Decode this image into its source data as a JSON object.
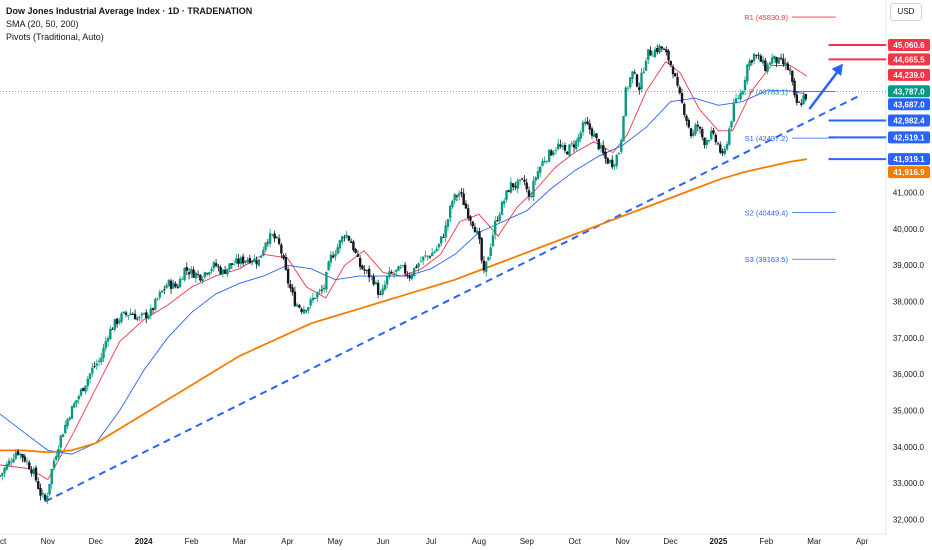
{
  "header": {
    "title": "Dow Jones Industrial Average Index · 1D · TRADENATION",
    "indicator_sma": "SMA (20, 50, 200)",
    "indicator_pivots": "Pivots (Traditional, Auto)",
    "currency": "USD"
  },
  "colors": {
    "candle_up": "#089981",
    "candle_down": "#131722",
    "sma20": "#f23645",
    "sma50": "#2962ff",
    "sma200": "#f57c00",
    "trendline": "#2962ff",
    "support_line": "#2962ff",
    "resistance_line": "#f23645",
    "pivot_p": "#089981"
  },
  "chart_data": {
    "type": "candlestick",
    "title": "Dow Jones Industrial Average Index",
    "timeframe": "1D",
    "x_ticks": [
      "Oct",
      "Nov",
      "Dec",
      "2024",
      "Feb",
      "Mar",
      "Apr",
      "May",
      "Jun",
      "Jul",
      "Aug",
      "Sep",
      "Oct",
      "Nov",
      "Dec",
      "2025",
      "Feb",
      "Mar",
      "Apr"
    ],
    "x_tick_index": [
      0,
      1,
      2,
      3,
      4,
      5,
      6,
      7,
      8,
      9,
      10,
      11,
      12,
      13,
      14,
      15,
      16,
      17,
      18
    ],
    "y_ticks": [
      "32,000.0",
      "33,000.0",
      "34,000.0",
      "35,000.0",
      "36,000.0",
      "37,000.0",
      "38,000.0",
      "39,000.0",
      "40,000.0",
      "41,000.0"
    ],
    "y_tick_values": [
      32000,
      33000,
      34000,
      35000,
      36000,
      37000,
      38000,
      39000,
      40000,
      41000
    ],
    "ylim": [
      31600,
      46300
    ],
    "xlim_months": [
      0,
      18.5
    ],
    "price_path": [
      [
        0.0,
        33200
      ],
      [
        0.2,
        33600
      ],
      [
        0.35,
        33900
      ],
      [
        0.5,
        33700
      ],
      [
        0.7,
        33300
      ],
      [
        0.85,
        32700
      ],
      [
        0.95,
        32500
      ],
      [
        1.0,
        32800
      ],
      [
        1.1,
        33500
      ],
      [
        1.25,
        34200
      ],
      [
        1.45,
        34900
      ],
      [
        1.6,
        35300
      ],
      [
        1.8,
        35800
      ],
      [
        1.95,
        36200
      ],
      [
        2.1,
        36400
      ],
      [
        2.25,
        37100
      ],
      [
        2.4,
        37400
      ],
      [
        2.55,
        37600
      ],
      [
        2.75,
        37700
      ],
      [
        2.9,
        37500
      ],
      [
        3.0,
        37600
      ],
      [
        3.15,
        37700
      ],
      [
        3.3,
        38100
      ],
      [
        3.5,
        38500
      ],
      [
        3.7,
        38400
      ],
      [
        3.85,
        38900
      ],
      [
        4.0,
        38800
      ],
      [
        4.2,
        38700
      ],
      [
        4.35,
        38900
      ],
      [
        4.5,
        39000
      ],
      [
        4.65,
        38800
      ],
      [
        4.8,
        39000
      ],
      [
        5.0,
        39100
      ],
      [
        5.2,
        39200
      ],
      [
        5.4,
        39100
      ],
      [
        5.55,
        39700
      ],
      [
        5.7,
        39800
      ],
      [
        5.85,
        39500
      ],
      [
        6.0,
        38600
      ],
      [
        6.15,
        38000
      ],
      [
        6.3,
        37800
      ],
      [
        6.45,
        37900
      ],
      [
        6.6,
        38200
      ],
      [
        6.75,
        38300
      ],
      [
        6.9,
        39200
      ],
      [
        7.05,
        39500
      ],
      [
        7.2,
        39900
      ],
      [
        7.35,
        39600
      ],
      [
        7.5,
        39000
      ],
      [
        7.65,
        38800
      ],
      [
        7.8,
        38600
      ],
      [
        7.95,
        38100
      ],
      [
        8.1,
        38700
      ],
      [
        8.25,
        38800
      ],
      [
        8.4,
        38900
      ],
      [
        8.55,
        38700
      ],
      [
        8.7,
        39000
      ],
      [
        8.85,
        39200
      ],
      [
        9.0,
        39300
      ],
      [
        9.15,
        39500
      ],
      [
        9.3,
        40000
      ],
      [
        9.45,
        40800
      ],
      [
        9.6,
        41000
      ],
      [
        9.75,
        40500
      ],
      [
        9.9,
        40100
      ],
      [
        10.0,
        39700
      ],
      [
        10.1,
        38700
      ],
      [
        10.2,
        39300
      ],
      [
        10.35,
        40200
      ],
      [
        10.5,
        40700
      ],
      [
        10.65,
        41200
      ],
      [
        10.8,
        41200
      ],
      [
        10.95,
        41300
      ],
      [
        11.05,
        40800
      ],
      [
        11.2,
        41500
      ],
      [
        11.35,
        41900
      ],
      [
        11.5,
        42100
      ],
      [
        11.65,
        42300
      ],
      [
        11.8,
        42100
      ],
      [
        11.95,
        42300
      ],
      [
        12.05,
        42400
      ],
      [
        12.2,
        42900
      ],
      [
        12.35,
        42700
      ],
      [
        12.5,
        42300
      ],
      [
        12.65,
        41900
      ],
      [
        12.8,
        41800
      ],
      [
        12.95,
        42200
      ],
      [
        13.05,
        43700
      ],
      [
        13.2,
        44300
      ],
      [
        13.35,
        43900
      ],
      [
        13.5,
        44800
      ],
      [
        13.65,
        44900
      ],
      [
        13.8,
        45000
      ],
      [
        13.95,
        44700
      ],
      [
        14.05,
        44400
      ],
      [
        14.15,
        43800
      ],
      [
        14.3,
        43200
      ],
      [
        14.45,
        42500
      ],
      [
        14.55,
        42900
      ],
      [
        14.7,
        42400
      ],
      [
        14.85,
        42600
      ],
      [
        15.0,
        42300
      ],
      [
        15.1,
        41900
      ],
      [
        15.25,
        42900
      ],
      [
        15.35,
        43500
      ],
      [
        15.5,
        43800
      ],
      [
        15.6,
        44500
      ],
      [
        15.75,
        44800
      ],
      [
        15.9,
        44600
      ],
      [
        16.0,
        44400
      ],
      [
        16.1,
        44700
      ],
      [
        16.25,
        44600
      ],
      [
        16.4,
        44500
      ],
      [
        16.5,
        44300
      ],
      [
        16.6,
        43500
      ],
      [
        16.7,
        43400
      ],
      [
        16.8,
        43700
      ],
      [
        16.85,
        43600
      ]
    ],
    "series": [
      {
        "name": "SMA 20",
        "values_note": "",
        "points": [
          [
            0.0,
            33500
          ],
          [
            0.6,
            33400
          ],
          [
            1.0,
            33100
          ],
          [
            1.5,
            34300
          ],
          [
            2.0,
            35600
          ],
          [
            2.5,
            36900
          ],
          [
            3.0,
            37500
          ],
          [
            3.5,
            37900
          ],
          [
            4.0,
            38400
          ],
          [
            4.5,
            38700
          ],
          [
            5.0,
            38900
          ],
          [
            5.5,
            39300
          ],
          [
            6.0,
            39200
          ],
          [
            6.4,
            38400
          ],
          [
            6.8,
            38100
          ],
          [
            7.2,
            39000
          ],
          [
            7.6,
            39400
          ],
          [
            8.0,
            38800
          ],
          [
            8.4,
            38700
          ],
          [
            8.8,
            38900
          ],
          [
            9.2,
            39300
          ],
          [
            9.6,
            40200
          ],
          [
            10.0,
            40400
          ],
          [
            10.4,
            39800
          ],
          [
            10.8,
            40600
          ],
          [
            11.2,
            41100
          ],
          [
            11.6,
            41700
          ],
          [
            12.0,
            42100
          ],
          [
            12.4,
            42400
          ],
          [
            12.8,
            42100
          ],
          [
            13.1,
            42600
          ],
          [
            13.5,
            43800
          ],
          [
            13.9,
            44600
          ],
          [
            14.2,
            44300
          ],
          [
            14.6,
            43300
          ],
          [
            15.0,
            42700
          ],
          [
            15.3,
            42700
          ],
          [
            15.7,
            43800
          ],
          [
            16.1,
            44500
          ],
          [
            16.5,
            44500
          ],
          [
            16.85,
            44200
          ]
        ]
      },
      {
        "name": "SMA 50",
        "points": [
          [
            0.0,
            34900
          ],
          [
            0.5,
            34400
          ],
          [
            1.0,
            33900
          ],
          [
            1.5,
            33800
          ],
          [
            2.0,
            34100
          ],
          [
            2.5,
            35000
          ],
          [
            3.0,
            36100
          ],
          [
            3.5,
            37000
          ],
          [
            4.0,
            37700
          ],
          [
            4.5,
            38200
          ],
          [
            5.0,
            38500
          ],
          [
            5.5,
            38700
          ],
          [
            6.0,
            39000
          ],
          [
            6.5,
            38900
          ],
          [
            7.0,
            38600
          ],
          [
            7.5,
            38700
          ],
          [
            8.0,
            38700
          ],
          [
            8.5,
            38700
          ],
          [
            9.0,
            38900
          ],
          [
            9.5,
            39300
          ],
          [
            10.0,
            39900
          ],
          [
            10.5,
            40200
          ],
          [
            11.0,
            40500
          ],
          [
            11.5,
            41100
          ],
          [
            12.0,
            41600
          ],
          [
            12.5,
            42000
          ],
          [
            13.0,
            42300
          ],
          [
            13.5,
            42800
          ],
          [
            14.0,
            43500
          ],
          [
            14.5,
            43600
          ],
          [
            15.0,
            43400
          ],
          [
            15.5,
            43500
          ],
          [
            16.0,
            43800
          ],
          [
            16.5,
            43800
          ],
          [
            16.85,
            43700
          ]
        ]
      },
      {
        "name": "SMA 200",
        "points": [
          [
            0.0,
            33900
          ],
          [
            0.5,
            33900
          ],
          [
            1.0,
            33850
          ],
          [
            1.5,
            33900
          ],
          [
            2.0,
            34100
          ],
          [
            2.5,
            34500
          ],
          [
            3.0,
            34900
          ],
          [
            3.5,
            35300
          ],
          [
            4.0,
            35700
          ],
          [
            4.5,
            36100
          ],
          [
            5.0,
            36500
          ],
          [
            5.5,
            36800
          ],
          [
            6.0,
            37100
          ],
          [
            6.5,
            37400
          ],
          [
            7.0,
            37600
          ],
          [
            7.5,
            37800
          ],
          [
            8.0,
            38000
          ],
          [
            8.5,
            38200
          ],
          [
            9.0,
            38400
          ],
          [
            9.5,
            38600
          ],
          [
            10.0,
            38850
          ],
          [
            10.5,
            39100
          ],
          [
            11.0,
            39350
          ],
          [
            11.5,
            39600
          ],
          [
            12.0,
            39850
          ],
          [
            12.5,
            40100
          ],
          [
            13.0,
            40350
          ],
          [
            13.5,
            40600
          ],
          [
            14.0,
            40850
          ],
          [
            14.5,
            41100
          ],
          [
            15.0,
            41350
          ],
          [
            15.5,
            41550
          ],
          [
            16.0,
            41700
          ],
          [
            16.5,
            41850
          ],
          [
            16.85,
            41920
          ]
        ]
      }
    ],
    "trendline": {
      "name": "",
      "from": [
        0.95,
        32500
      ],
      "to": [
        18.0,
        43700
      ]
    },
    "arrow": {
      "from": [
        16.9,
        43300
      ],
      "to": [
        17.6,
        44550
      ]
    },
    "pivots": [
      {
        "label": "R1 (45830.9)",
        "value": 45830.9,
        "color": "#f23645"
      },
      {
        "label": "P (43783.1)",
        "value": 43783.1,
        "color": "#089981"
      },
      {
        "label": "S1 (42497.2)",
        "value": 42497.2,
        "color": "#2962ff"
      },
      {
        "label": "S2 (40449.4)",
        "value": 40449.4,
        "color": "#2962ff"
      },
      {
        "label": "S3 (39163.5)",
        "value": 39163.5,
        "color": "#2962ff"
      }
    ],
    "horizontal_levels": [
      {
        "value": 45060.6,
        "color": "#f23645"
      },
      {
        "value": 44665.5,
        "color": "#f23645"
      },
      {
        "value": 42982.4,
        "color": "#2962ff"
      },
      {
        "value": 42519.1,
        "color": "#2962ff"
      },
      {
        "value": 41919.1,
        "color": "#2962ff"
      }
    ],
    "price_labels": [
      {
        "text": "45,060.6",
        "value": 45060.6,
        "color": "#f23645"
      },
      {
        "text": "44,665.5",
        "value": 44665.5,
        "color": "#f23645"
      },
      {
        "text": "44,239.0",
        "value": 44239.0,
        "color": "#f23645"
      },
      {
        "text": "43,787.0",
        "value": 43787.0,
        "color": "#089981"
      },
      {
        "text": "43,687.0",
        "value": 43687.0,
        "color": "#2962ff"
      },
      {
        "text": "42,982.4",
        "value": 42982.4,
        "color": "#2962ff"
      },
      {
        "text": "42,519.1",
        "value": 42519.1,
        "color": "#2962ff"
      },
      {
        "text": "41,919.1",
        "value": 41919.1,
        "color": "#2962ff"
      },
      {
        "text": "41,916.9",
        "value": 41916.9,
        "color": "#f57c00"
      }
    ],
    "grid": false,
    "legend_position": "top-left"
  }
}
